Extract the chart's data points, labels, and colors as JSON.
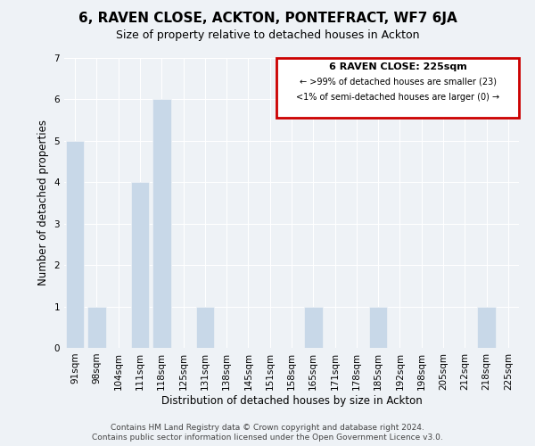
{
  "title": "6, RAVEN CLOSE, ACKTON, PONTEFRACT, WF7 6JA",
  "subtitle": "Size of property relative to detached houses in Ackton",
  "xlabel": "Distribution of detached houses by size in Ackton",
  "ylabel": "Number of detached properties",
  "bar_labels": [
    "91sqm",
    "98sqm",
    "104sqm",
    "111sqm",
    "118sqm",
    "125sqm",
    "131sqm",
    "138sqm",
    "145sqm",
    "151sqm",
    "158sqm",
    "165sqm",
    "171sqm",
    "178sqm",
    "185sqm",
    "192sqm",
    "198sqm",
    "205sqm",
    "212sqm",
    "218sqm",
    "225sqm"
  ],
  "bar_values": [
    5,
    1,
    0,
    4,
    6,
    0,
    1,
    0,
    0,
    0,
    0,
    1,
    0,
    0,
    1,
    0,
    0,
    0,
    0,
    1,
    0
  ],
  "bar_color": "#c8d8e8",
  "highlight_box_color": "#cc0000",
  "ylim": [
    0,
    7
  ],
  "yticks": [
    0,
    1,
    2,
    3,
    4,
    5,
    6,
    7
  ],
  "legend_title": "6 RAVEN CLOSE: 225sqm",
  "legend_line1": "← >99% of detached houses are smaller (23)",
  "legend_line2": "<1% of semi-detached houses are larger (0) →",
  "footer_line1": "Contains HM Land Registry data © Crown copyright and database right 2024.",
  "footer_line2": "Contains public sector information licensed under the Open Government Licence v3.0.",
  "title_fontsize": 11,
  "subtitle_fontsize": 9,
  "axis_label_fontsize": 8.5,
  "tick_fontsize": 7.5,
  "legend_fontsize": 8,
  "footer_fontsize": 6.5,
  "bg_color": "#eef2f6",
  "plot_bg_color": "#eef2f6",
  "grid_color": "white"
}
